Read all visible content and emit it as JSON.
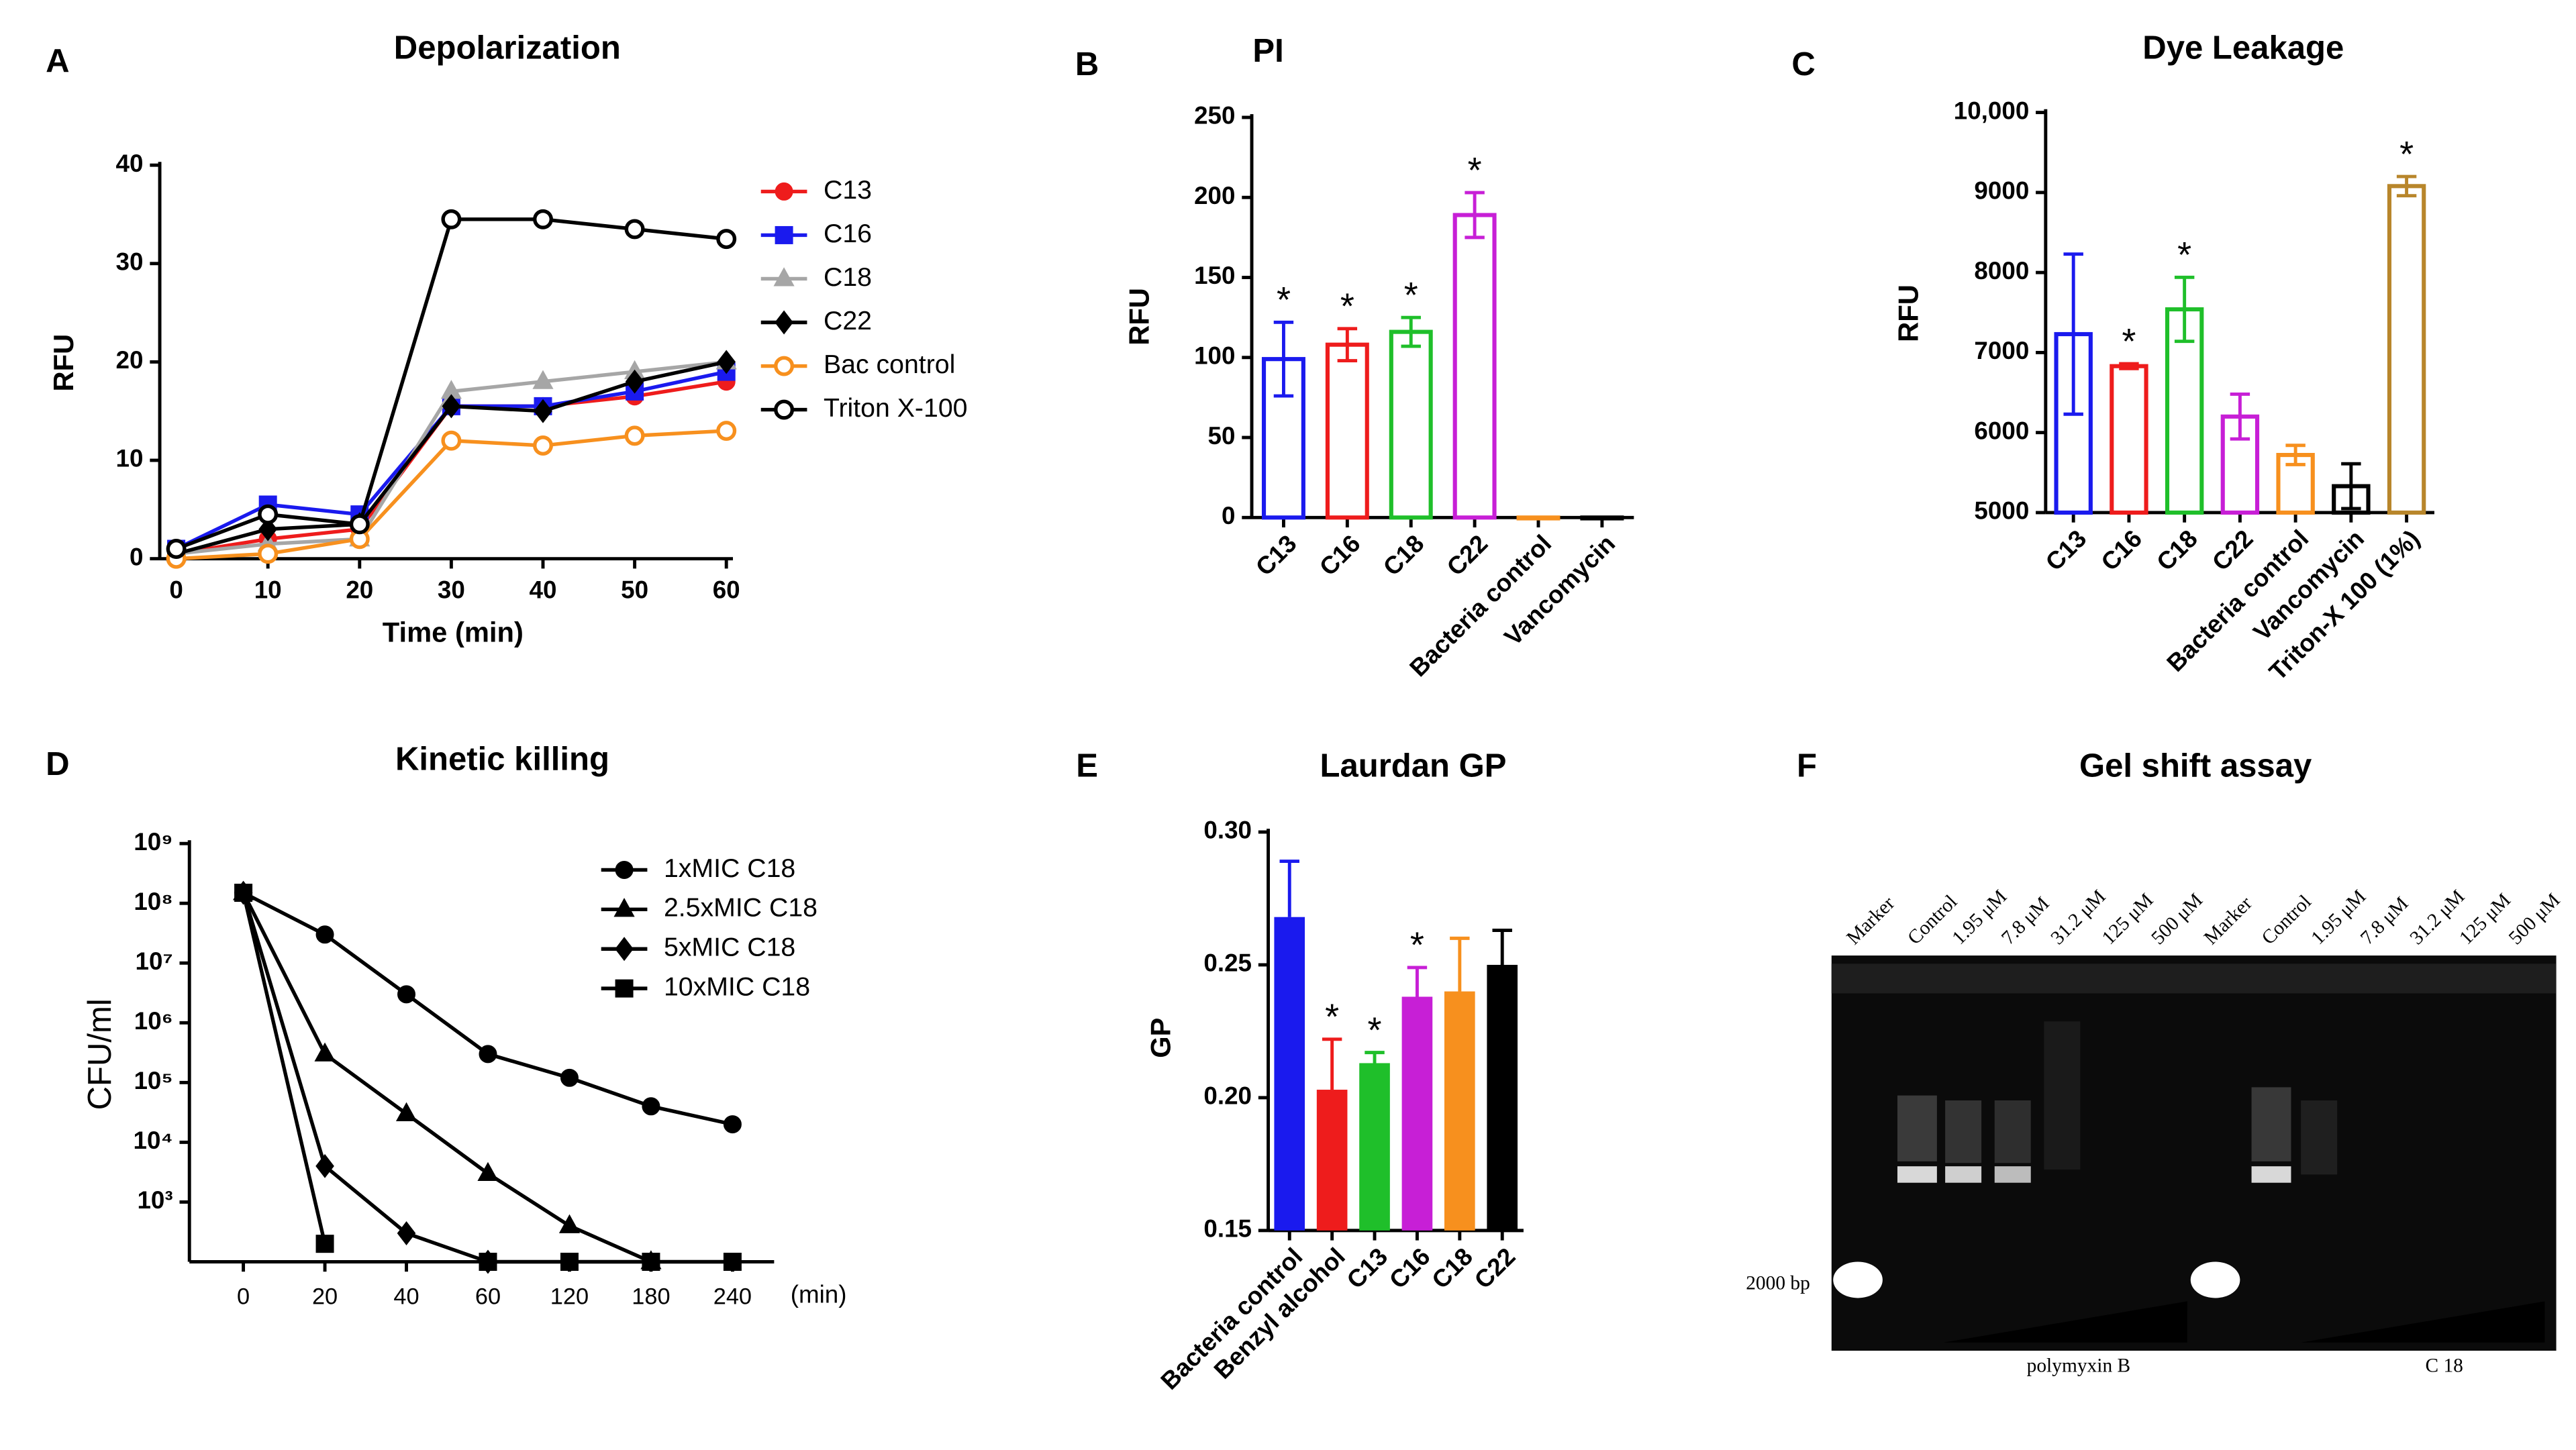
{
  "chart_data": [
    {
      "type": "line",
      "panel": "A",
      "title": "Depolarization",
      "x_label": "Time (min)",
      "y_label": "RFU",
      "x": [
        0,
        10,
        20,
        30,
        40,
        50,
        60
      ],
      "xlim": [
        0,
        60
      ],
      "xticks": [
        0,
        10,
        20,
        30,
        40,
        50,
        60
      ],
      "ylim": [
        0,
        40
      ],
      "yticks": [
        0,
        10,
        20,
        30,
        40
      ],
      "series": [
        {
          "name": "C13",
          "color": "#ee1c1c",
          "marker": "circle",
          "values": [
            0.5,
            2,
            3,
            15.5,
            15.5,
            16.5,
            18
          ]
        },
        {
          "name": "C16",
          "color": "#1a1aee",
          "marker": "square",
          "values": [
            1,
            5.5,
            4.5,
            15.5,
            15.5,
            17,
            19
          ]
        },
        {
          "name": "C18",
          "color": "#a6a6a6",
          "marker": "triangle",
          "values": [
            0.5,
            1.5,
            2,
            17,
            18,
            19,
            20
          ]
        },
        {
          "name": "C22",
          "color": "#000000",
          "marker": "diamond",
          "values": [
            0.5,
            3,
            3.5,
            15.5,
            15,
            18,
            20
          ]
        },
        {
          "name": "Bac control",
          "color": "#f7901e",
          "marker": "open-circle",
          "values": [
            0,
            0.5,
            2,
            12,
            11.5,
            12.5,
            13
          ]
        },
        {
          "name": "Triton X-100",
          "color": "#000000",
          "marker": "open-circle",
          "values": [
            1,
            4.5,
            3.5,
            34.5,
            34.5,
            33.5,
            32.5
          ]
        }
      ]
    },
    {
      "type": "bar",
      "panel": "B",
      "title": "PI",
      "y_label": "RFU",
      "hollow": true,
      "categories": [
        "C13",
        "C16",
        "C18",
        "C22",
        "Bacteria control",
        "Vancomycin"
      ],
      "values": [
        99,
        108,
        116,
        189,
        0,
        0
      ],
      "errors": [
        23,
        10,
        9,
        14,
        0,
        0
      ],
      "colors": [
        "#1a1aee",
        "#ee1c1c",
        "#1fbf2a",
        "#c71fd6",
        "#f7901e",
        "#000000"
      ],
      "annotations": [
        "*",
        "*",
        "*",
        "*",
        null,
        null
      ],
      "ylim": [
        0,
        250
      ],
      "yticks": [
        0,
        50,
        100,
        150,
        200,
        250
      ]
    },
    {
      "type": "bar",
      "panel": "C",
      "title": "Dye Leakage",
      "y_label": "RFU",
      "hollow": true,
      "categories": [
        "C13",
        "C16",
        "C18",
        "C22",
        "Bacteria control",
        "Vancomycin",
        "Triton-X 100 (1%)"
      ],
      "values": [
        7230,
        6830,
        7540,
        6200,
        5720,
        5330,
        9080
      ],
      "errors": [
        1000,
        30,
        400,
        280,
        120,
        280,
        120
      ],
      "colors": [
        "#1a1aee",
        "#ee1c1c",
        "#1fbf2a",
        "#c71fd6",
        "#f7901e",
        "#000000",
        "#b8862b"
      ],
      "annotations": [
        null,
        "*",
        "*",
        null,
        null,
        null,
        "*"
      ],
      "ylim": [
        5000,
        10000
      ],
      "yticks": [
        5000,
        6000,
        7000,
        8000,
        9000,
        {
          "value": 10000,
          "label": "10,000"
        }
      ]
    },
    {
      "type": "line",
      "panel": "D",
      "title": "Kinetic killing",
      "x_label": "(min)",
      "y_label": "CFU/ml",
      "yscale": "log",
      "categories": [
        "0",
        "20",
        "40",
        "60",
        "120",
        "180",
        "240"
      ],
      "ylim": [
        100,
        1000000000
      ],
      "yticks": [
        {
          "value": 1000,
          "label": "10³"
        },
        {
          "value": 10000,
          "label": "10⁴"
        },
        {
          "value": 100000,
          "label": "10⁵"
        },
        {
          "value": 1000000,
          "label": "10⁶"
        },
        {
          "value": 10000000,
          "label": "10⁷"
        },
        {
          "value": 100000000,
          "label": "10⁸"
        },
        {
          "value": 1000000000,
          "label": "10⁹"
        }
      ],
      "series": [
        {
          "name": "1xMIC C18",
          "color": "#000000",
          "marker": "circle",
          "values": [
            150000000,
            30000000,
            3000000,
            300000,
            120000,
            40000,
            20000
          ]
        },
        {
          "name": "2.5xMIC C18",
          "color": "#000000",
          "marker": "triangle",
          "values": [
            150000000,
            300000,
            30000,
            3000,
            400,
            100,
            null
          ]
        },
        {
          "name": "5xMIC C18",
          "color": "#000000",
          "marker": "diamond",
          "values": [
            150000000,
            4000,
            300,
            100,
            null,
            null,
            null
          ]
        },
        {
          "name": "10xMIC C18",
          "color": "#000000",
          "marker": "square",
          "values": [
            150000000,
            200,
            null,
            100,
            100,
            100,
            100
          ]
        }
      ]
    },
    {
      "type": "bar",
      "panel": "E",
      "title": "Laurdan GP",
      "y_label": "GP",
      "hollow": false,
      "categories": [
        "Bacteria control",
        "Benzyl alcohol",
        "C13",
        "C16",
        "C18",
        "C22"
      ],
      "values": [
        0.268,
        0.203,
        0.213,
        0.238,
        0.24,
        0.25
      ],
      "errors": [
        0.021,
        0.019,
        0.004,
        0.011,
        0.02,
        0.013
      ],
      "colors": [
        "#1a1aee",
        "#ee1c1c",
        "#1fbf2a",
        "#c71fd6",
        "#f7901e",
        "#000000"
      ],
      "annotations": [
        null,
        "*",
        "*",
        "*",
        null,
        null
      ],
      "ylim": [
        0.15,
        0.3
      ],
      "yticks": [
        0.15,
        {
          "value": 0.2,
          "label": "0.20"
        },
        0.25,
        {
          "value": 0.3,
          "label": "0.30"
        }
      ]
    },
    {
      "type": "gel",
      "panel": "F",
      "title": "Gel shift assay",
      "lanes": [
        "Marker",
        "Control",
        "1.95 μM",
        "7.8 μM",
        "31.2 μM",
        "125 μM",
        "500 μM",
        "Marker",
        "Control",
        "1.95 μM",
        "7.8 μM",
        "31.2 μM",
        "125 μM",
        "500 μM"
      ],
      "marker_label": "2000 bp",
      "groups": [
        "polymyxin B",
        "C 18"
      ]
    }
  ]
}
